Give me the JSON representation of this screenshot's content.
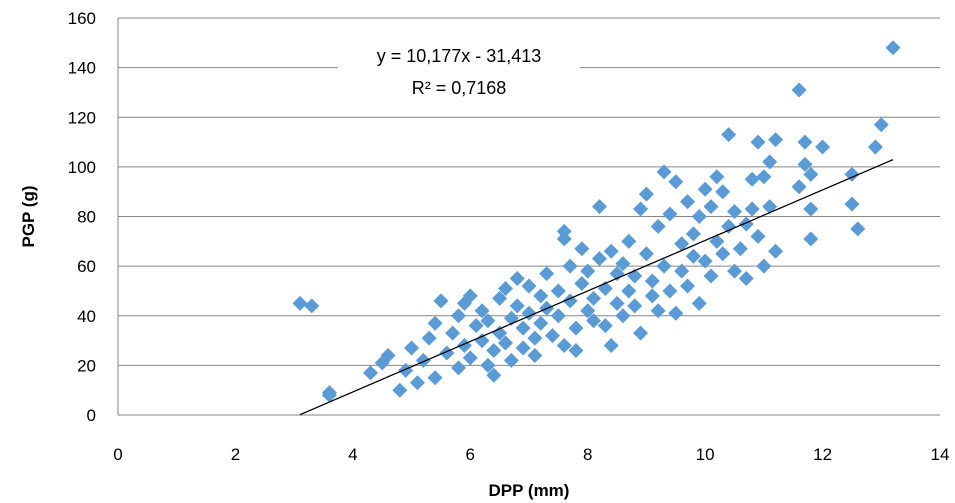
{
  "chart_data": {
    "type": "scatter",
    "title": "",
    "xlabel": "DPP (mm)",
    "ylabel": "PGP (g)",
    "xlim": [
      0,
      14
    ],
    "ylim": [
      0,
      160
    ],
    "xticks": [
      "0",
      "2",
      "4",
      "6",
      "8",
      "10",
      "12",
      "14"
    ],
    "yticks": [
      "0",
      "20",
      "40",
      "60",
      "80",
      "100",
      "120",
      "140",
      "160"
    ],
    "grid": "horizontal",
    "legend": "none",
    "colors": {
      "marker": "#5B9BD5",
      "trendline": "#000000",
      "grid": "#868686"
    },
    "trendline": {
      "type": "linear",
      "slope": 10.177,
      "intercept": -31.413,
      "x_range": [
        3.1,
        13.2
      ],
      "equation_label": "y = 10,177x - 31,413",
      "r2_label": "R² = 0,7168"
    },
    "points": [
      [
        3.1,
        45
      ],
      [
        3.3,
        44
      ],
      [
        3.6,
        8
      ],
      [
        3.6,
        9
      ],
      [
        4.3,
        17
      ],
      [
        4.5,
        21
      ],
      [
        4.6,
        24
      ],
      [
        4.8,
        10
      ],
      [
        4.9,
        18
      ],
      [
        5.0,
        27
      ],
      [
        5.1,
        13
      ],
      [
        5.2,
        22
      ],
      [
        5.3,
        31
      ],
      [
        5.4,
        37
      ],
      [
        5.4,
        15
      ],
      [
        5.5,
        46
      ],
      [
        5.6,
        25
      ],
      [
        5.7,
        33
      ],
      [
        5.8,
        19
      ],
      [
        5.8,
        40
      ],
      [
        5.9,
        45
      ],
      [
        5.9,
        28
      ],
      [
        6.0,
        48
      ],
      [
        6.0,
        23
      ],
      [
        6.1,
        36
      ],
      [
        6.2,
        30
      ],
      [
        6.2,
        42
      ],
      [
        6.3,
        20
      ],
      [
        6.3,
        38
      ],
      [
        6.4,
        16
      ],
      [
        6.4,
        26
      ],
      [
        6.5,
        47
      ],
      [
        6.5,
        33
      ],
      [
        6.6,
        29
      ],
      [
        6.6,
        51
      ],
      [
        6.7,
        39
      ],
      [
        6.7,
        22
      ],
      [
        6.8,
        55
      ],
      [
        6.8,
        44
      ],
      [
        6.9,
        35
      ],
      [
        6.9,
        27
      ],
      [
        7.0,
        52
      ],
      [
        7.0,
        41
      ],
      [
        7.1,
        31
      ],
      [
        7.1,
        24
      ],
      [
        7.2,
        48
      ],
      [
        7.2,
        37
      ],
      [
        7.3,
        57
      ],
      [
        7.3,
        43
      ],
      [
        7.4,
        32
      ],
      [
        7.5,
        50
      ],
      [
        7.5,
        40
      ],
      [
        7.6,
        74
      ],
      [
        7.6,
        71
      ],
      [
        7.6,
        28
      ],
      [
        7.7,
        60
      ],
      [
        7.7,
        46
      ],
      [
        7.8,
        35
      ],
      [
        7.8,
        26
      ],
      [
        7.9,
        67
      ],
      [
        7.9,
        53
      ],
      [
        8.0,
        58
      ],
      [
        8.0,
        42
      ],
      [
        8.1,
        38
      ],
      [
        8.1,
        47
      ],
      [
        8.2,
        84
      ],
      [
        8.2,
        63
      ],
      [
        8.3,
        51
      ],
      [
        8.3,
        36
      ],
      [
        8.4,
        28
      ],
      [
        8.4,
        66
      ],
      [
        8.5,
        45
      ],
      [
        8.5,
        57
      ],
      [
        8.6,
        40
      ],
      [
        8.6,
        61
      ],
      [
        8.7,
        50
      ],
      [
        8.7,
        70
      ],
      [
        8.8,
        44
      ],
      [
        8.8,
        56
      ],
      [
        8.9,
        33
      ],
      [
        8.9,
        83
      ],
      [
        9.0,
        89
      ],
      [
        9.0,
        65
      ],
      [
        9.1,
        48
      ],
      [
        9.1,
        54
      ],
      [
        9.2,
        76
      ],
      [
        9.2,
        42
      ],
      [
        9.3,
        98
      ],
      [
        9.3,
        60
      ],
      [
        9.4,
        81
      ],
      [
        9.4,
        50
      ],
      [
        9.5,
        94
      ],
      [
        9.5,
        41
      ],
      [
        9.6,
        69
      ],
      [
        9.6,
        58
      ],
      [
        9.7,
        86
      ],
      [
        9.7,
        52
      ],
      [
        9.8,
        64
      ],
      [
        9.8,
        73
      ],
      [
        9.9,
        45
      ],
      [
        9.9,
        80
      ],
      [
        10.0,
        91
      ],
      [
        10.0,
        62
      ],
      [
        10.1,
        56
      ],
      [
        10.1,
        84
      ],
      [
        10.2,
        96
      ],
      [
        10.2,
        70
      ],
      [
        10.3,
        90
      ],
      [
        10.3,
        65
      ],
      [
        10.4,
        113
      ],
      [
        10.4,
        76
      ],
      [
        10.5,
        58
      ],
      [
        10.5,
        82
      ],
      [
        10.6,
        67
      ],
      [
        10.7,
        77
      ],
      [
        10.7,
        55
      ],
      [
        10.8,
        83
      ],
      [
        10.8,
        95
      ],
      [
        10.9,
        110
      ],
      [
        10.9,
        72
      ],
      [
        11.0,
        96
      ],
      [
        11.0,
        60
      ],
      [
        11.1,
        102
      ],
      [
        11.1,
        84
      ],
      [
        11.2,
        111
      ],
      [
        11.2,
        66
      ],
      [
        11.6,
        131
      ],
      [
        11.6,
        92
      ],
      [
        11.7,
        110
      ],
      [
        11.7,
        101
      ],
      [
        11.8,
        97
      ],
      [
        11.8,
        83
      ],
      [
        11.8,
        71
      ],
      [
        12.0,
        108
      ],
      [
        12.5,
        97
      ],
      [
        12.5,
        85
      ],
      [
        12.6,
        75
      ],
      [
        12.9,
        108
      ],
      [
        13.0,
        117
      ],
      [
        13.2,
        148
      ]
    ]
  }
}
